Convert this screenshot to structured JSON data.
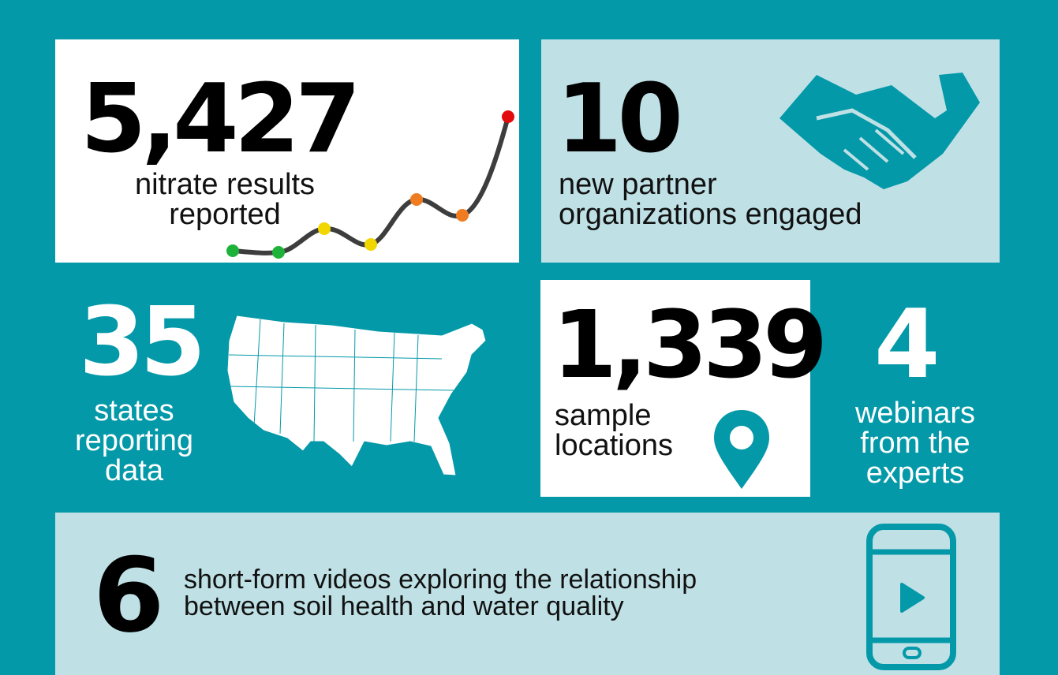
{
  "stats": [
    {
      "number": "5,427",
      "label": [
        "nitrate results",
        "reported"
      ]
    },
    {
      "number": "10",
      "label": [
        "new partner",
        "organizations engaged"
      ]
    },
    {
      "number": "35",
      "label": [
        "states",
        "reporting",
        "data"
      ]
    },
    {
      "number": "1,339",
      "label": [
        "sample",
        "locations"
      ]
    },
    {
      "number": "4",
      "label": [
        "webinars",
        "from the",
        "experts"
      ]
    },
    {
      "number": "6",
      "label": [
        "short-form videos exploring the relationship",
        "between soil health and water quality"
      ]
    }
  ]
}
